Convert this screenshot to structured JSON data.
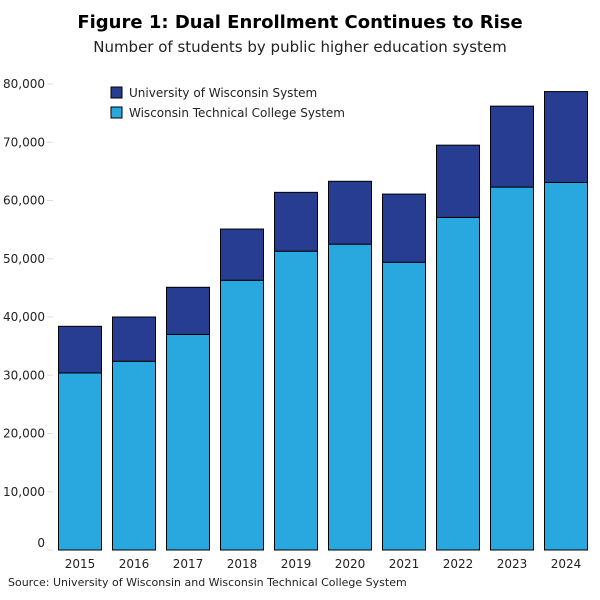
{
  "chart_data": {
    "type": "bar",
    "stacked": true,
    "title": "Figure 1: Dual Enrollment Continues to Rise",
    "subtitle": "Number of students by public higher education system",
    "source": "Source: University of Wisconsin and Wisconsin Technical College System",
    "categories": [
      "2015",
      "2016",
      "2017",
      "2018",
      "2019",
      "2020",
      "2021",
      "2022",
      "2023",
      "2024"
    ],
    "series": [
      {
        "name": "Wisconsin Technical College System",
        "color": "#29a8e0",
        "values": [
          30400,
          32400,
          37000,
          46300,
          51300,
          52500,
          49400,
          57100,
          62300,
          63100
        ]
      },
      {
        "name": "University of Wisconsin System",
        "color": "#263d91",
        "values": [
          8000,
          7600,
          8100,
          8800,
          10100,
          10800,
          11700,
          12400,
          13900,
          15600
        ]
      }
    ],
    "legend_order": [
      1,
      0
    ],
    "legend_position": "top-left",
    "ylim": [
      0,
      80000
    ],
    "yticks": [
      0,
      10000,
      20000,
      30000,
      40000,
      50000,
      60000,
      70000,
      80000
    ],
    "ytick_labels": [
      "0",
      "10,000",
      "20,000",
      "30,000",
      "40,000",
      "50,000",
      "60,000",
      "70,000",
      "80,000"
    ],
    "grid": false
  }
}
